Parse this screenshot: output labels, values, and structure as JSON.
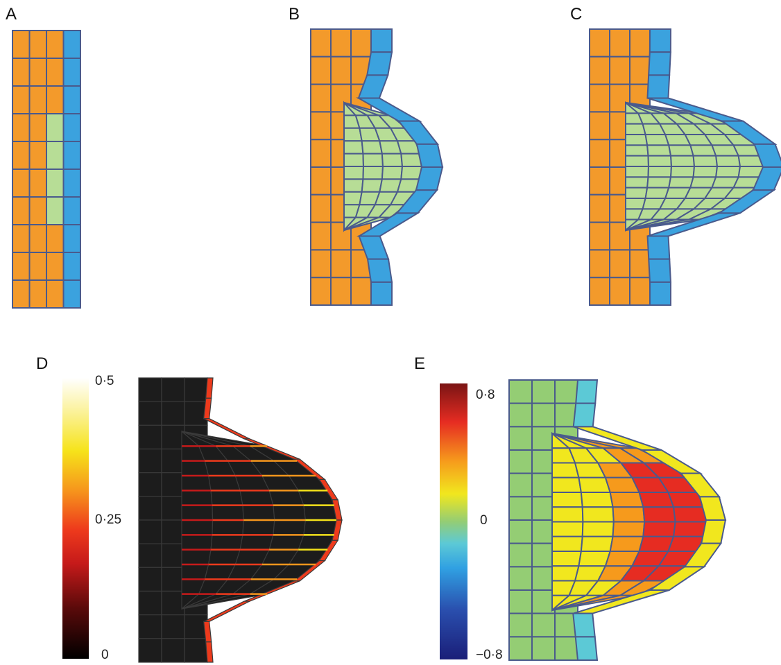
{
  "panels": [
    {
      "label": "A"
    },
    {
      "label": "B"
    },
    {
      "label": "C"
    },
    {
      "label": "D",
      "colorbar": {
        "ticks": [
          "0·5",
          "0·25",
          "0"
        ],
        "min": 0,
        "max": 0.5
      }
    },
    {
      "label": "E",
      "colorbar": {
        "ticks": [
          "0·8",
          "0",
          "−0·8"
        ],
        "min": -0.8,
        "max": 0.8
      }
    }
  ],
  "colors": {
    "outer_tissue": "#f39a2b",
    "inner_tissue": "#b7dd96",
    "surface_layer": "#3ba2de",
    "grid_line": "#4a5a8c",
    "panel_d_background": "#1c1c1c"
  },
  "colormaps": {
    "D": [
      "#000000",
      "#5a0a0a",
      "#c61a1a",
      "#ee3a1c",
      "#f6961c",
      "#f6e31a",
      "#fbf29a",
      "#ffffff"
    ],
    "E": [
      "#1a1e78",
      "#2a4fae",
      "#30a0e2",
      "#5cc9d6",
      "#94cd74",
      "#f1e71e",
      "#f69a1c",
      "#e62c22",
      "#7a1414"
    ]
  }
}
